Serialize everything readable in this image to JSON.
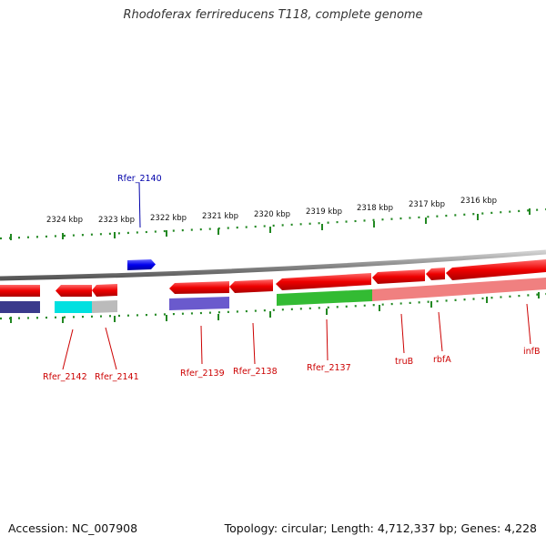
{
  "title": "Rhodoferax ferrireducens T118, complete genome",
  "footer": {
    "accession": "Accession: NC_007908",
    "topology": "Topology: circular; Length: 4,712,337 bp; Genes: 4,228"
  },
  "scale": {
    "unit": "kbp",
    "ticks": [
      "2324 kbp",
      "2323 kbp",
      "2322 kbp",
      "2321 kbp",
      "2320 kbp",
      "2319 kbp",
      "2318 kbp",
      "2317 kbp",
      "2316 kbp"
    ]
  },
  "colors": {
    "backbone": "#8a8a8a",
    "forward_gene": "#1010ee",
    "reverse_gene": "#ee1111",
    "gene_label_reverse": "#cc0000",
    "gene_label_forward": "#0000aa",
    "tick": "#228822",
    "feature_navy": "#3a3a8c",
    "feature_cyan": "#00e0e0",
    "feature_gray": "#bbbbbb",
    "feature_purple": "#6a5acd",
    "feature_green": "#33bb33",
    "feature_pink": "#f08080"
  },
  "genes": [
    {
      "name": "Rfer_2142",
      "strand": "-"
    },
    {
      "name": "Rfer_2141",
      "strand": "-"
    },
    {
      "name": "Rfer_2140",
      "strand": "+"
    },
    {
      "name": "Rfer_2139",
      "strand": "-"
    },
    {
      "name": "Rfer_2138",
      "strand": "-"
    },
    {
      "name": "Rfer_2137",
      "strand": "-"
    },
    {
      "name": "truB",
      "strand": "-"
    },
    {
      "name": "rbfA",
      "strand": "-"
    },
    {
      "name": "infB",
      "strand": "-"
    }
  ]
}
